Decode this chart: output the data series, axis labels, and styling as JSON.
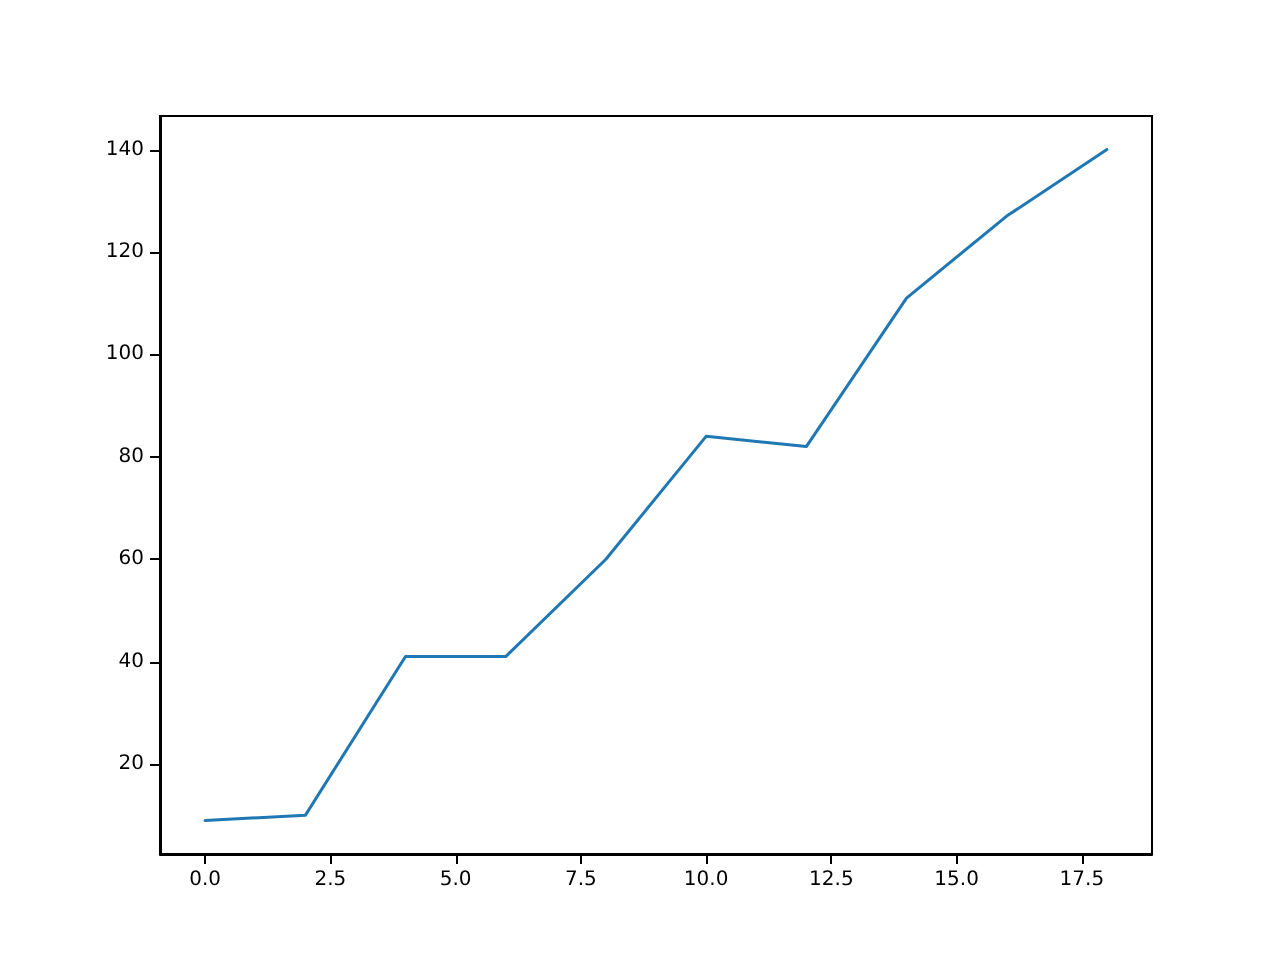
{
  "chart_data": {
    "type": "line",
    "x": [
      0,
      2,
      4,
      6,
      8,
      10,
      12,
      14,
      16,
      18
    ],
    "series": [
      {
        "color": "#1f77b4",
        "values": [
          9,
          10,
          41,
          41,
          60,
          84,
          82,
          111,
          127,
          140
        ]
      }
    ],
    "xlim": [
      -0.9,
      18.9
    ],
    "xticks": [
      {
        "value": 0,
        "label": "0.0"
      },
      {
        "value": 2.5,
        "label": "2.5"
      },
      {
        "value": 5,
        "label": "5.0"
      },
      {
        "value": 7.5,
        "label": "7.5"
      },
      {
        "value": 10,
        "label": "10.0"
      },
      {
        "value": 12.5,
        "label": "12.5"
      },
      {
        "value": 15,
        "label": "15.0"
      },
      {
        "value": 17.5,
        "label": "17.5"
      }
    ],
    "ylim": [
      2.45,
      146.55
    ],
    "yticks": [
      20,
      40,
      60,
      80,
      100,
      120,
      140
    ],
    "grid": false,
    "marker": "none",
    "line_style": "solid"
  }
}
